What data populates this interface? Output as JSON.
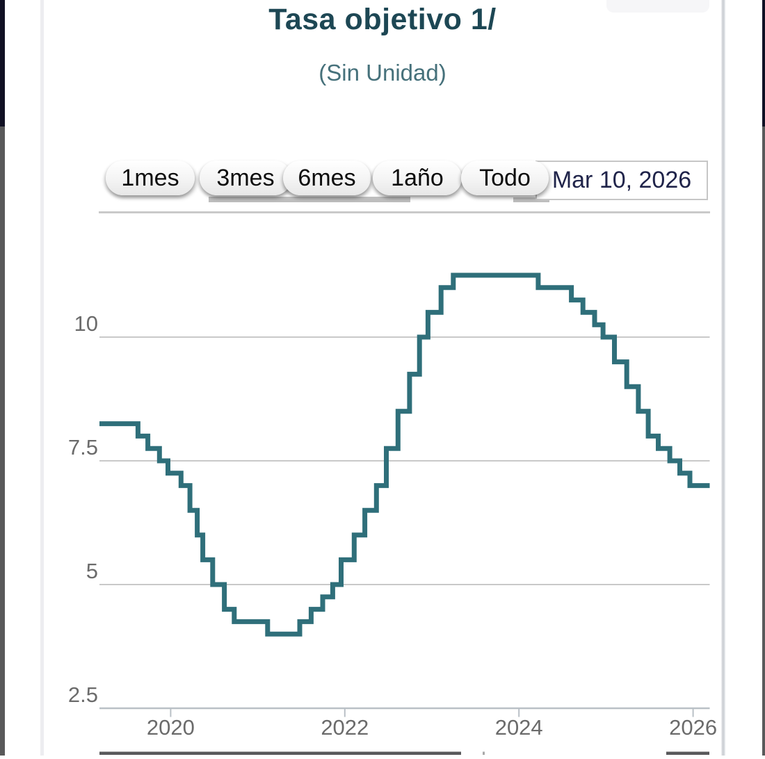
{
  "page": {
    "title": "Tasa objetivo 1/",
    "subtitle": "(Sin Unidad)"
  },
  "range_selector": {
    "buttons": [
      {
        "label": "1mes"
      },
      {
        "label": "3mes"
      },
      {
        "label": "6mes"
      },
      {
        "label": "1año"
      },
      {
        "label": "Todo"
      }
    ],
    "selected": "Todo",
    "date_input_value": "Mar 10, 2026"
  },
  "chart_data": {
    "type": "line",
    "step": true,
    "title": "Tasa objetivo 1/",
    "subtitle": "(Sin Unidad)",
    "grid": true,
    "line_color": "#2f6f7a",
    "x_range": [
      "2019-03-10",
      "2026-03-10"
    ],
    "ylim": [
      2.5,
      11.6
    ],
    "y_ticks": [
      2.5,
      5,
      7.5,
      10
    ],
    "y_tick_labels": [
      "2.5",
      "5",
      "7.5",
      "10"
    ],
    "x_ticks": [
      2020,
      2022,
      2024,
      2026
    ],
    "x_tick_labels": [
      "2020",
      "2022",
      "2024",
      "2026"
    ],
    "series": [
      {
        "name": "Tasa objetivo",
        "points": [
          [
            "2019-03-10",
            8.25
          ],
          [
            "2019-08-16",
            8.0
          ],
          [
            "2019-09-27",
            7.75
          ],
          [
            "2019-11-15",
            7.5
          ],
          [
            "2019-12-20",
            7.25
          ],
          [
            "2020-02-14",
            7.0
          ],
          [
            "2020-03-21",
            6.5
          ],
          [
            "2020-04-21",
            6.0
          ],
          [
            "2020-05-14",
            5.5
          ],
          [
            "2020-06-25",
            5.0
          ],
          [
            "2020-08-13",
            4.5
          ],
          [
            "2020-09-24",
            4.25
          ],
          [
            "2021-02-12",
            4.0
          ],
          [
            "2021-06-25",
            4.25
          ],
          [
            "2021-08-12",
            4.5
          ],
          [
            "2021-09-30",
            4.75
          ],
          [
            "2021-11-11",
            5.0
          ],
          [
            "2021-12-16",
            5.5
          ],
          [
            "2022-02-10",
            6.0
          ],
          [
            "2022-03-24",
            6.5
          ],
          [
            "2022-05-12",
            7.0
          ],
          [
            "2022-06-23",
            7.75
          ],
          [
            "2022-08-11",
            8.5
          ],
          [
            "2022-09-29",
            9.25
          ],
          [
            "2022-11-10",
            10.0
          ],
          [
            "2022-12-15",
            10.5
          ],
          [
            "2023-02-09",
            11.0
          ],
          [
            "2023-03-30",
            11.25
          ],
          [
            "2024-03-21",
            11.0
          ],
          [
            "2024-08-08",
            10.75
          ],
          [
            "2024-09-26",
            10.5
          ],
          [
            "2024-11-14",
            10.25
          ],
          [
            "2024-12-19",
            10.0
          ],
          [
            "2025-02-06",
            9.5
          ],
          [
            "2025-03-27",
            9.0
          ],
          [
            "2025-05-15",
            8.5
          ],
          [
            "2025-06-26",
            8.0
          ],
          [
            "2025-08-07",
            7.75
          ],
          [
            "2025-09-25",
            7.5
          ],
          [
            "2025-11-06",
            7.25
          ],
          [
            "2025-12-18",
            7.0
          ]
        ]
      }
    ]
  }
}
